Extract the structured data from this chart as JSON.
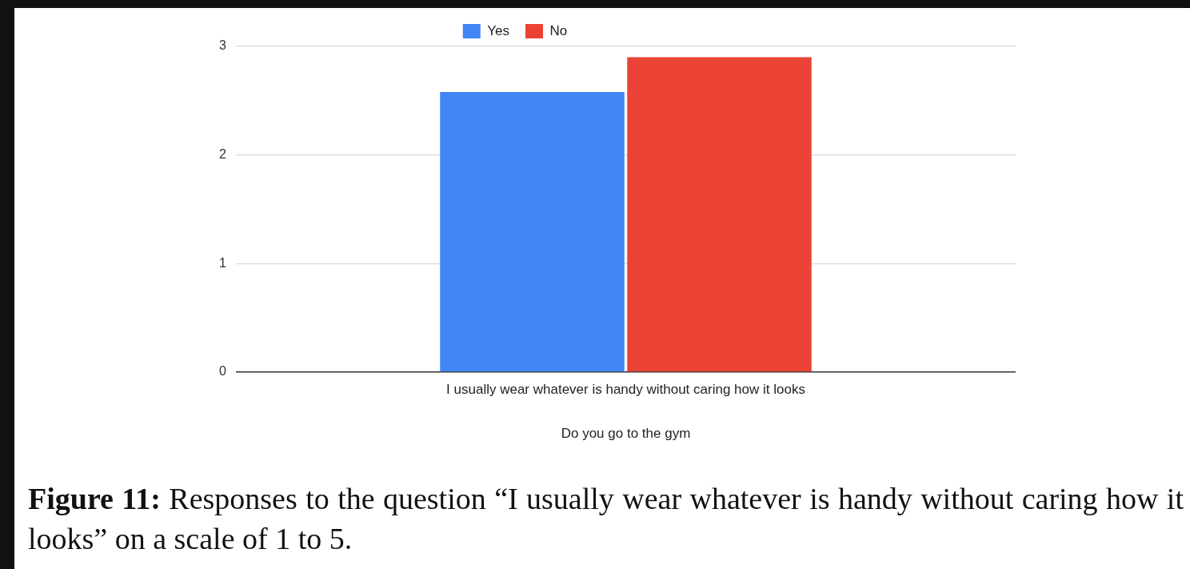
{
  "chart_data": {
    "type": "bar",
    "categories": [
      "I usually wear whatever is handy without caring how it looks"
    ],
    "series": [
      {
        "name": "Yes",
        "color": "#4285f4",
        "values": [
          2.58
        ]
      },
      {
        "name": "No",
        "color": "#ea4335",
        "values": [
          2.9
        ]
      }
    ],
    "xlabel": "Do you go to the gym",
    "ylim": [
      0,
      3
    ],
    "yticks": [
      0,
      1,
      2,
      3
    ],
    "grid": "y",
    "legend": "top",
    "annotations": [
      "Figure 11: Responses to the question “I usually wear whatever is handy without caring how it looks” on a scale of 1 to 5."
    ]
  }
}
